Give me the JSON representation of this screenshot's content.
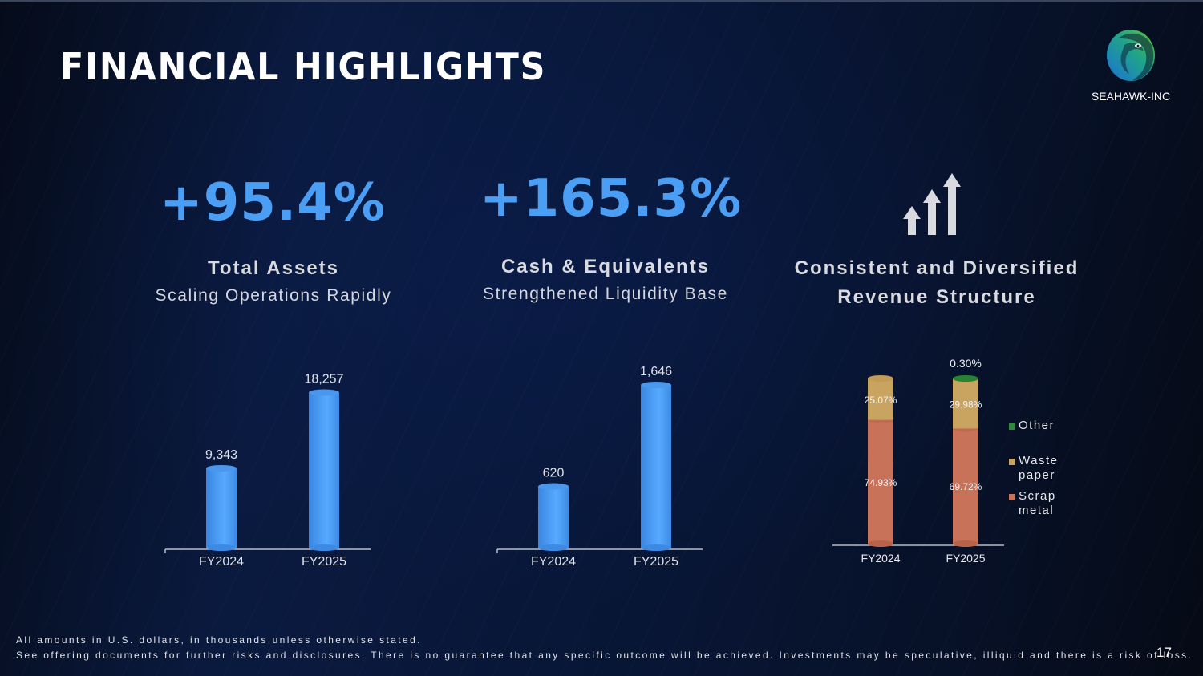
{
  "slide": {
    "title": "FINANCIAL HIGHLIGHTS",
    "brand": {
      "name": "SEAHAWK-INC",
      "logo_icon": "seahawk-logo-icon"
    },
    "page_number": "17"
  },
  "kpis": [
    {
      "value": "+95.4%",
      "heading": "Total Assets",
      "subheading": "Scaling Operations Rapidly"
    },
    {
      "value": "+165.3%",
      "heading": "Cash & Equivalents",
      "subheading": "Strengthened Liquidity Base"
    },
    {
      "icon": "growth-arrows-icon",
      "heading_line1": "Consistent and Diversified",
      "heading_line2": "Revenue Structure"
    }
  ],
  "colors": {
    "accent_blue": "#4a9ff5",
    "scrap_metal": "#c8725a",
    "waste_paper": "#c9a460",
    "other": "#2e8b3a"
  },
  "chart_data": [
    {
      "type": "bar",
      "title": "Total Assets",
      "categories": [
        "FY2024",
        "FY2025"
      ],
      "values": [
        9343,
        18257
      ],
      "labels": [
        "9,343",
        "18,257"
      ],
      "xlabel": "",
      "ylabel": "",
      "ylim": [
        0,
        20000
      ],
      "grid": false
    },
    {
      "type": "bar",
      "title": "Cash & Equivalents",
      "categories": [
        "FY2024",
        "FY2025"
      ],
      "values": [
        620,
        1646
      ],
      "labels": [
        "620",
        "1,646"
      ],
      "xlabel": "",
      "ylabel": "",
      "ylim": [
        0,
        1800
      ],
      "grid": false
    },
    {
      "type": "bar",
      "stacked": true,
      "title": "Revenue Structure",
      "categories": [
        "FY2024",
        "FY2025"
      ],
      "series": [
        {
          "name": "Scrap metal",
          "values": [
            74.93,
            69.72
          ],
          "labels": [
            "74.93%",
            "69.72%"
          ]
        },
        {
          "name": "Waste paper",
          "values": [
            25.07,
            29.98
          ],
          "labels": [
            "25.07%",
            "29.98%"
          ]
        },
        {
          "name": "Other",
          "values": [
            0,
            0.3
          ],
          "labels": [
            "",
            "0.30%"
          ]
        }
      ],
      "legend": [
        "Other",
        "Waste paper",
        "Scrap metal"
      ],
      "legend_lines": [
        [
          "Other"
        ],
        [
          "Waste",
          "paper"
        ],
        [
          "Scrap",
          "metal"
        ]
      ],
      "legend_position": "right",
      "ylim": [
        0,
        100
      ],
      "grid": false
    }
  ],
  "footnotes": {
    "line1": "All amounts in U.S. dollars, in thousands unless otherwise stated.",
    "line2": "See offering documents for further risks and disclosures. There is no guarantee that any specific outcome will be achieved. Investments may be speculative, illiquid and there is a risk of loss."
  }
}
